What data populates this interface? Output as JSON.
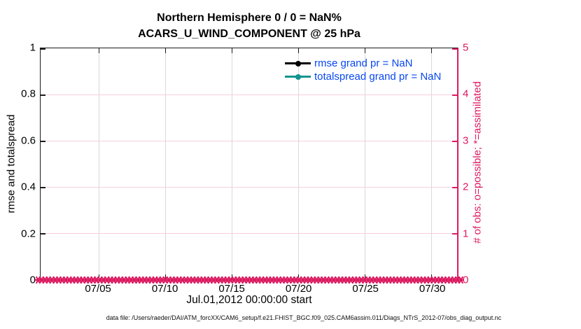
{
  "title": {
    "line1": "Northern Hemisphere 0 / 0 = NaN%",
    "line2": "ACARS_U_WIND_COMPONENT @ 25 hPa"
  },
  "axes": {
    "left": {
      "label": "rmse and totalspread",
      "tick_labels": [
        "1",
        "0.8",
        "0.6",
        "0.4",
        "0.2",
        "0"
      ],
      "tick_values": [
        1,
        0.8,
        0.6,
        0.4,
        0.2,
        0
      ],
      "color": "#000000"
    },
    "right": {
      "label": "# of obs: o=possible; *=assimilated",
      "tick_labels": [
        "5",
        "4",
        "3",
        "2",
        "1",
        "0"
      ],
      "tick_values": [
        5,
        4,
        3,
        2,
        1,
        0
      ],
      "color": "#DB1A60"
    },
    "bottom": {
      "label": "Jul.01,2012 00:00:00 start",
      "tick_labels": [
        "07/05",
        "07/10",
        "07/15",
        "07/20",
        "07/25",
        "07/30"
      ]
    }
  },
  "legend": {
    "text_color": "#0848F0",
    "entries": [
      {
        "label": "rmse grand pr = NaN",
        "color": "#000000"
      },
      {
        "label": "totalspread grand pr = NaN",
        "color": "#129490"
      }
    ]
  },
  "footer": {
    "data_file": "data file: /Users/raeder/DAI/ATM_forcXX/CAM6_setup/f.e21.FHIST_BGC.f09_025.CAM6assim.011/Diags_NTrS_2012-07/obs_diag_output.nc"
  },
  "colors": {
    "crimson": "#DB1A60",
    "teal": "#129490",
    "legend_blue": "#0848F0",
    "grid_vertical": "#d9d9d9",
    "grid_horizontal": "#f6d0de",
    "axis_black": "#1a1a1a"
  },
  "chart_data": {
    "type": "line",
    "title": "Northern Hemisphere 0 / 0 = NaN%",
    "subtitle": "ACARS_U_WIND_COMPONENT @ 25 hPa",
    "xlabel": "Jul.01,2012 00:00:00 start",
    "x_tick_labels": [
      "07/05",
      "07/10",
      "07/15",
      "07/20",
      "07/25",
      "07/30"
    ],
    "x_range": [
      "2012-07-01 00:00",
      "2012-07-31 18:00"
    ],
    "left_axis": {
      "label": "rmse and totalspread",
      "ylim": [
        0,
        1
      ],
      "ticks": [
        0,
        0.2,
        0.4,
        0.6,
        0.8,
        1
      ]
    },
    "right_axis": {
      "label": "# of obs: o=possible; *=assimilated",
      "ylim": [
        0,
        5
      ],
      "ticks": [
        0,
        1,
        2,
        3,
        4,
        5
      ]
    },
    "grid": true,
    "legend_position": "top-right-inside",
    "series": [
      {
        "name": "rmse grand pr = NaN",
        "type": "line",
        "color": "#000000",
        "values": "all NaN (no line drawn)"
      },
      {
        "name": "totalspread grand pr = NaN",
        "type": "line",
        "color": "#129490",
        "values": "all NaN (no line drawn)"
      },
      {
        "name": "# of obs possible (o)",
        "type": "scatter",
        "marker": "o",
        "color": "#DB1A60",
        "constant_value": 0,
        "n_points": 124
      },
      {
        "name": "# of obs assimilated (*)",
        "type": "scatter",
        "marker": "*",
        "color": "#DB1A60",
        "constant_value": 0,
        "n_points": 124
      }
    ]
  }
}
